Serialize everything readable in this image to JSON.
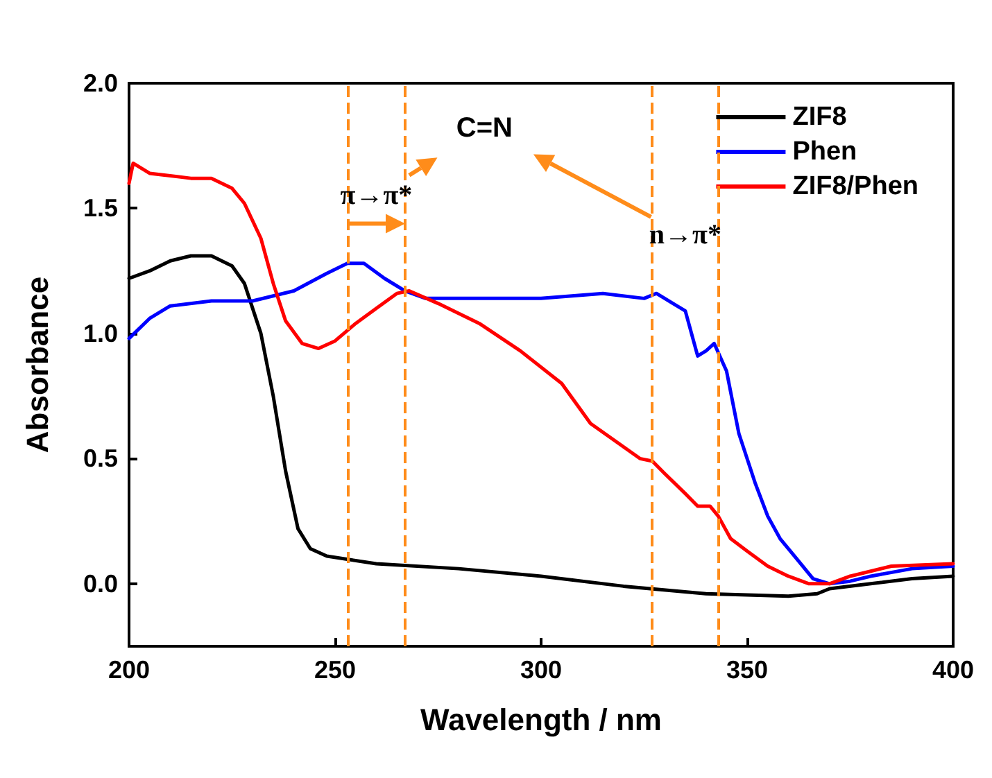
{
  "chart_data": {
    "type": "line",
    "xlabel": "Wavelength / nm",
    "ylabel": "Absorbance",
    "xlim": [
      200,
      400
    ],
    "xticks": [
      200,
      250,
      300,
      350,
      400
    ],
    "ylim": [
      -0.25,
      2.0
    ],
    "yticks": [
      {
        "value": 0,
        "label": "0.0"
      },
      0.5,
      {
        "value": 1,
        "label": "1.0"
      },
      1.5,
      {
        "value": 2,
        "label": "2.0"
      }
    ],
    "legend": "top right",
    "line_style": "solid",
    "marker": "none",
    "series": [
      {
        "name": "ZIF8",
        "color": "#000000",
        "x": [
          200,
          205,
          210,
          215,
          220,
          225,
          228,
          232,
          235,
          238,
          241,
          244,
          248,
          260,
          280,
          300,
          320,
          340,
          360,
          367,
          370,
          380,
          390,
          400
        ],
        "values": [
          1.22,
          1.25,
          1.29,
          1.31,
          1.31,
          1.27,
          1.2,
          1.0,
          0.75,
          0.45,
          0.22,
          0.14,
          0.11,
          0.08,
          0.06,
          0.03,
          -0.01,
          -0.04,
          -0.05,
          -0.04,
          -0.02,
          0.0,
          0.02,
          0.03
        ]
      },
      {
        "name": "Phen",
        "color": "#0000ff",
        "x": [
          200,
          205,
          210,
          220,
          230,
          240,
          248,
          253,
          257,
          262,
          267,
          272,
          300,
          315,
          325,
          328,
          332,
          335,
          338,
          340,
          342,
          345,
          348,
          352,
          355,
          358,
          362,
          366,
          370,
          375,
          380,
          390,
          400
        ],
        "values": [
          0.98,
          1.06,
          1.11,
          1.13,
          1.13,
          1.17,
          1.24,
          1.28,
          1.28,
          1.22,
          1.17,
          1.14,
          1.14,
          1.16,
          1.14,
          1.16,
          1.12,
          1.09,
          0.91,
          0.93,
          0.96,
          0.85,
          0.6,
          0.4,
          0.27,
          0.18,
          0.1,
          0.02,
          0.0,
          0.01,
          0.03,
          0.06,
          0.07
        ]
      },
      {
        "name": "ZIF8/Phen",
        "color": "#ff0000",
        "x": [
          200,
          201,
          205,
          215,
          220,
          225,
          228,
          232,
          235,
          238,
          242,
          246,
          250,
          255,
          260,
          265,
          268,
          275,
          285,
          295,
          305,
          312,
          318,
          324,
          327,
          330,
          335,
          338,
          341,
          343,
          346,
          350,
          355,
          360,
          365,
          370,
          375,
          385,
          400
        ],
        "values": [
          1.6,
          1.68,
          1.64,
          1.62,
          1.62,
          1.58,
          1.52,
          1.38,
          1.2,
          1.05,
          0.96,
          0.94,
          0.97,
          1.04,
          1.1,
          1.16,
          1.17,
          1.12,
          1.04,
          0.93,
          0.8,
          0.64,
          0.57,
          0.5,
          0.49,
          0.44,
          0.36,
          0.31,
          0.31,
          0.27,
          0.18,
          0.13,
          0.07,
          0.03,
          0.0,
          0.0,
          0.03,
          0.07,
          0.08
        ]
      }
    ],
    "ref_lines": [
      {
        "axis": "x",
        "value": 253,
        "color": "#ff8c1a",
        "line_style": "dashed"
      },
      {
        "axis": "x",
        "value": 267,
        "color": "#ff8c1a",
        "line_style": "dashed"
      },
      {
        "axis": "x",
        "value": 327,
        "color": "#ff8c1a",
        "line_style": "dashed"
      },
      {
        "axis": "x",
        "value": 343,
        "color": "#ff8c1a",
        "line_style": "dashed"
      }
    ],
    "annotations": [
      "C=N",
      "π→π*",
      "n→π*"
    ]
  }
}
